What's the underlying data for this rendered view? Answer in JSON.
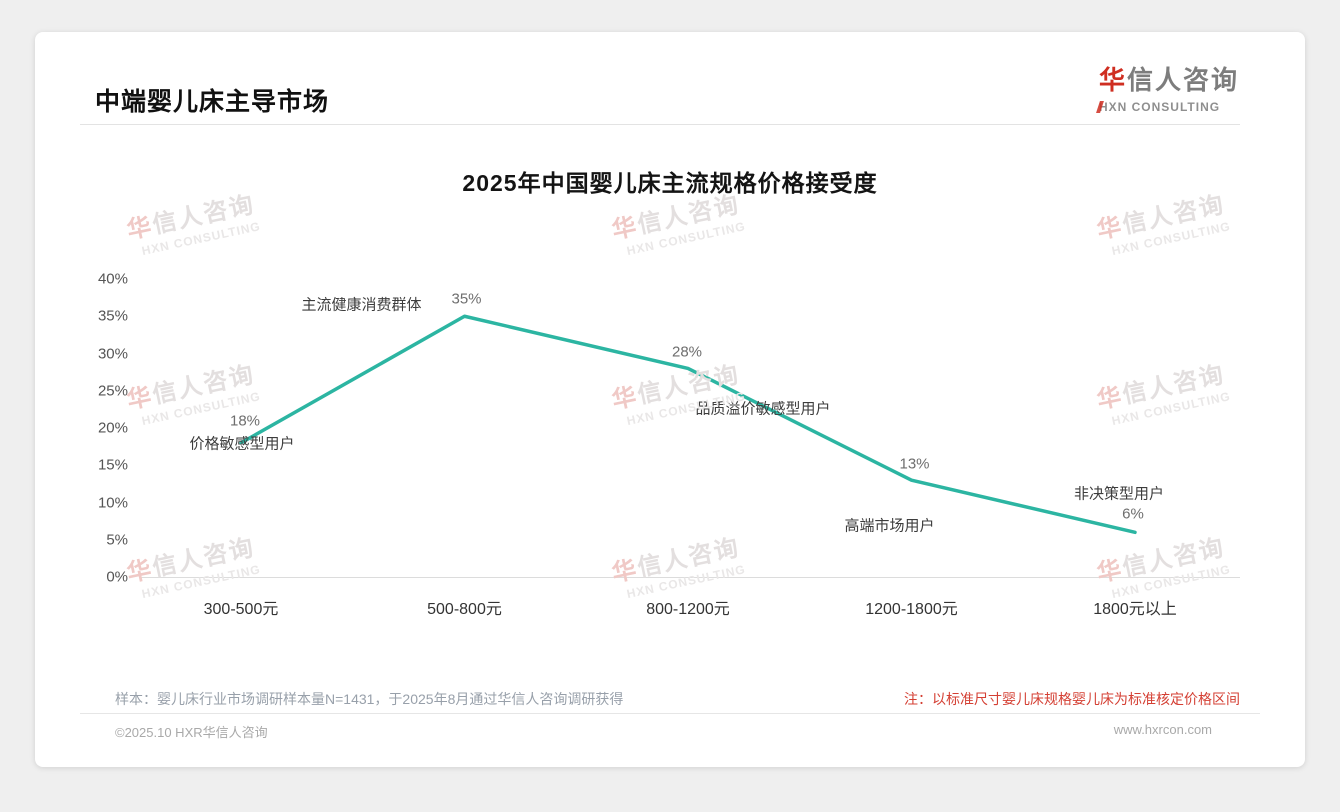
{
  "header": {
    "page_title": "中端婴儿床主导市场",
    "logo": {
      "name_zh": "华信人咨询",
      "name_en": "HXN CONSULTING"
    }
  },
  "chart_data": {
    "type": "line",
    "title": "2025年中国婴儿床主流规格价格接受度",
    "categories": [
      "300-500元",
      "500-800元",
      "800-1200元",
      "1200-1800元",
      "1800元以上"
    ],
    "series": [
      {
        "name": "价格接受度",
        "values": [
          18,
          35,
          28,
          13,
          6
        ]
      }
    ],
    "point_labels": [
      "18%",
      "35%",
      "28%",
      "13%",
      "6%"
    ],
    "point_annotations": [
      "价格敏感型用户",
      "主流健康消费群体",
      "品质溢价敏感型用户",
      "高端市场用户",
      "非决策型用户"
    ],
    "yticks": [
      "0%",
      "5%",
      "10%",
      "15%",
      "20%",
      "25%",
      "30%",
      "35%",
      "40%"
    ],
    "ylim": [
      0,
      40
    ],
    "grid": false,
    "legend": "none",
    "line_color": "#2cb5a2"
  },
  "watermark": {
    "zh": "华信人咨询",
    "en": "HXN CONSULTING"
  },
  "footnotes": {
    "sample_note": "样本：婴儿床行业市场调研样本量N=1431，于2025年8月通过华信人咨询调研获得",
    "price_note": "注：以标准尺寸婴儿床规格婴儿床为标准核定价格区间"
  },
  "footer": {
    "copyright": "©2025.10 HXR华信人咨询",
    "website": "www.hxrcon.com"
  }
}
